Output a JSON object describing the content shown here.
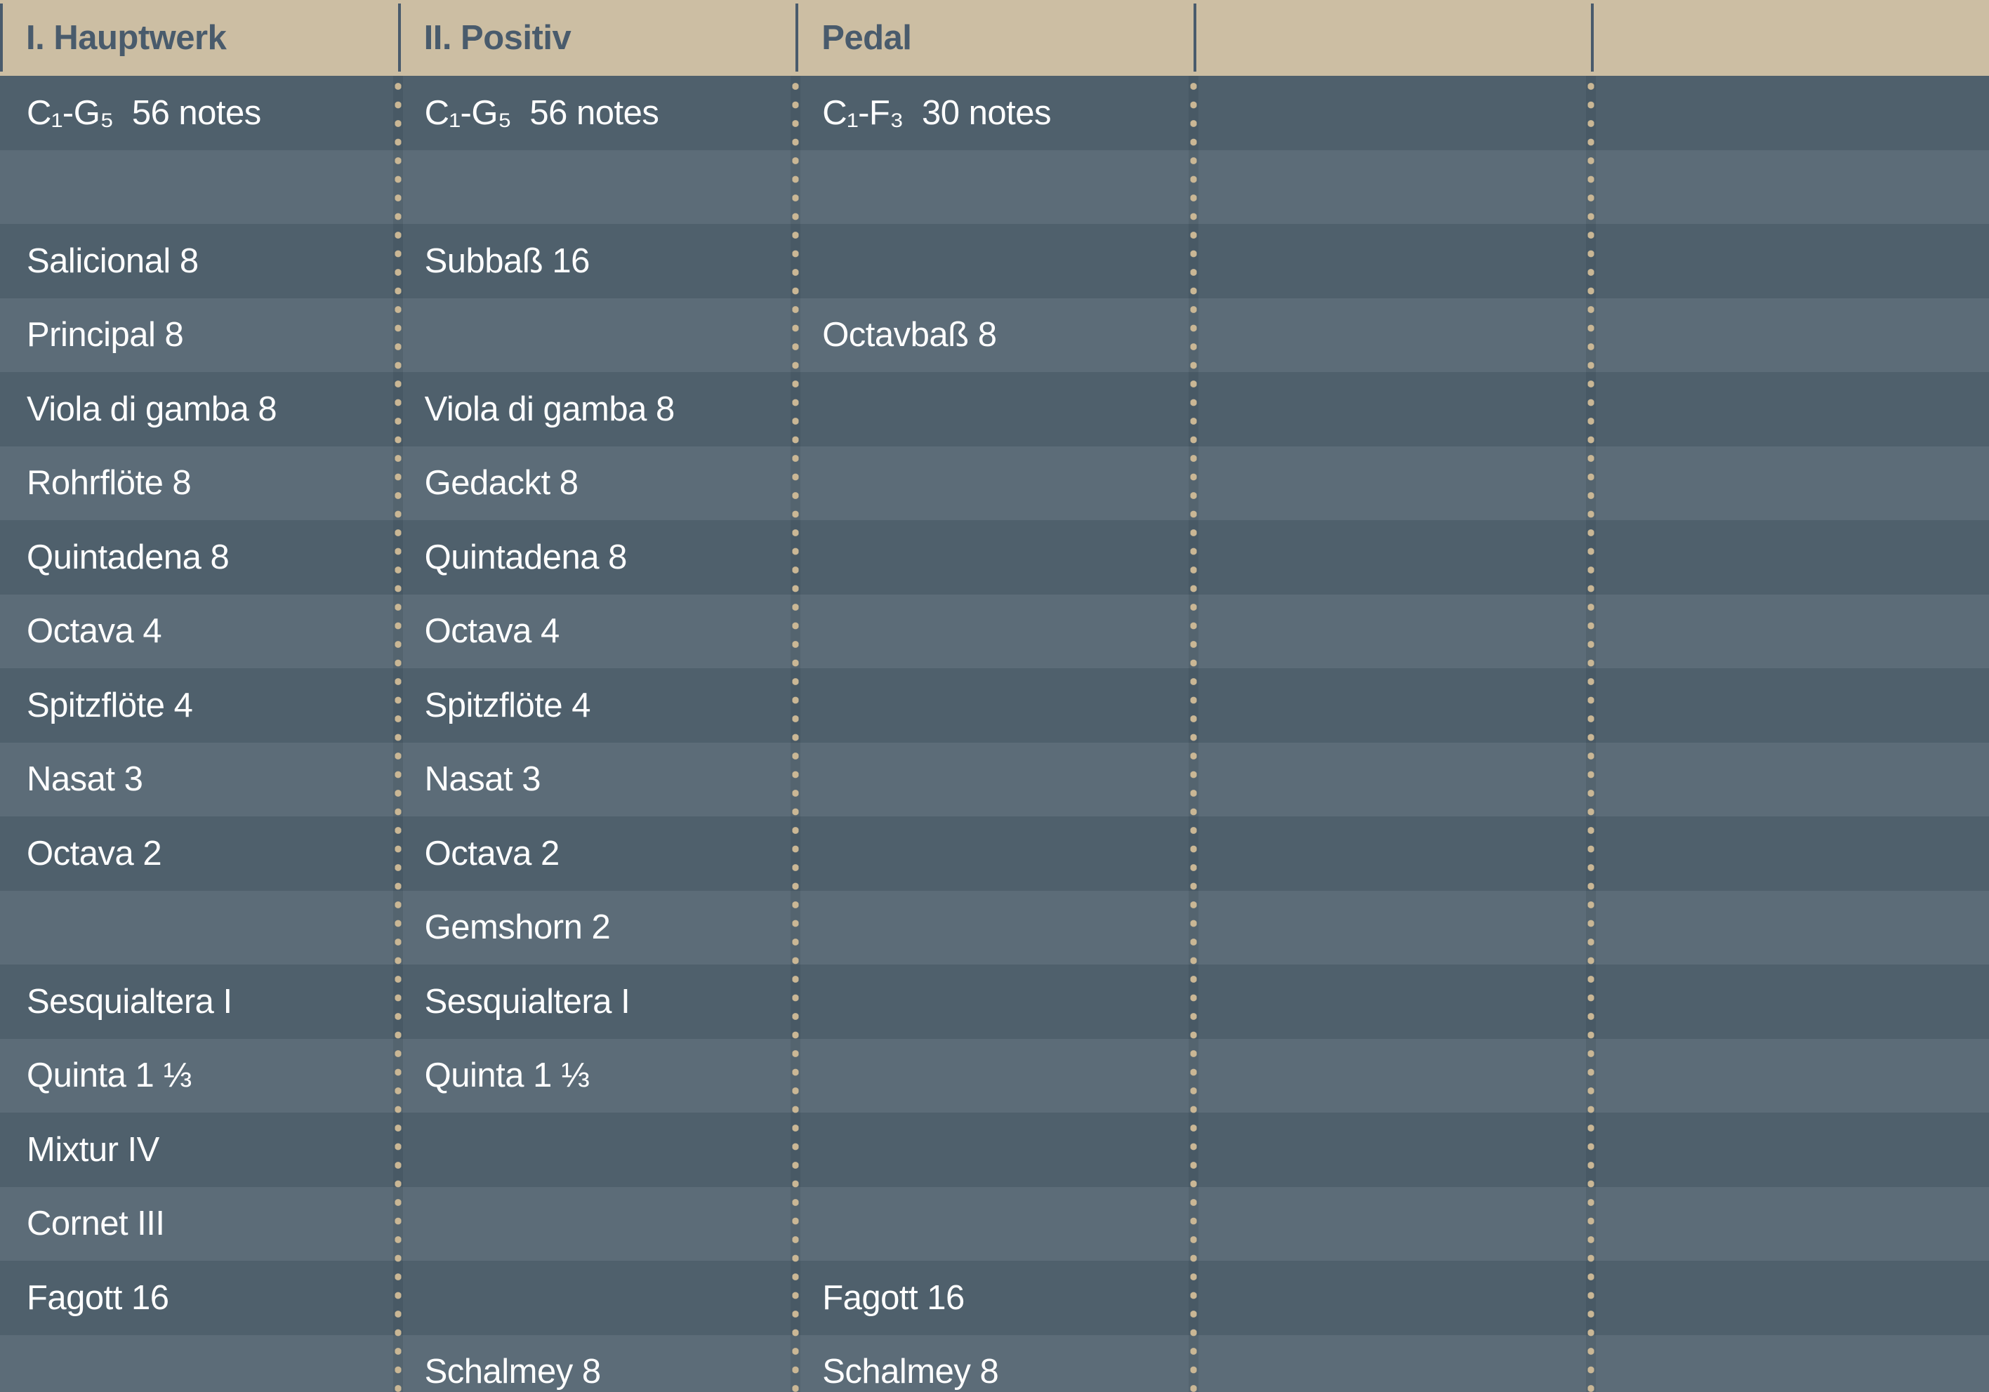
{
  "table": {
    "column_ids": [
      "hauptwerk",
      "positiv",
      "pedal",
      "empty-1",
      "empty-2"
    ],
    "headers": [
      "I. Hauptwerk",
      "II. Positiv",
      "Pedal",
      "",
      ""
    ],
    "rows": [
      [
        "C₁-G₅  56 notes",
        "C₁-G₅  56 notes",
        "C₁-F₃  30 notes",
        "",
        ""
      ],
      [
        "",
        "",
        "",
        "",
        ""
      ],
      [
        "Salicional 8",
        "Subbaß 16",
        "",
        "",
        ""
      ],
      [
        "Principal 8",
        "",
        "Octavbaß 8",
        "",
        ""
      ],
      [
        "Viola di gamba 8",
        "Viola di gamba 8",
        "",
        "",
        ""
      ],
      [
        "Rohrflöte 8",
        "Gedackt 8",
        "",
        "",
        ""
      ],
      [
        "Quintadena 8",
        "Quintadena 8",
        "",
        "",
        ""
      ],
      [
        "Octava 4",
        "Octava 4",
        "",
        "",
        ""
      ],
      [
        "Spitzflöte 4",
        "Spitzflöte 4",
        "",
        "",
        ""
      ],
      [
        "Nasat 3",
        "Nasat 3",
        "",
        "",
        ""
      ],
      [
        "Octava 2",
        "Octava 2",
        "",
        "",
        ""
      ],
      [
        "",
        "Gemshorn 2",
        "",
        "",
        ""
      ],
      [
        "Sesquialtera I",
        "Sesquialtera I",
        "",
        "",
        ""
      ],
      [
        "Quinta 1 ⅓",
        "Quinta 1 ⅓",
        "",
        "",
        ""
      ],
      [
        "Mixtur IV",
        "",
        "",
        "",
        ""
      ],
      [
        "Cornet III",
        "",
        "",
        "",
        ""
      ],
      [
        "Fagott 16",
        "",
        "Fagott 16",
        "",
        ""
      ],
      [
        "",
        "Schalmey 8",
        "Schalmey 8",
        "",
        ""
      ]
    ]
  },
  "colors": {
    "header_bg": "#ccbea3",
    "header_text": "#495b6c",
    "row_dark": "#4f606c",
    "row_light": "#5c6c78",
    "dot": "#cab795",
    "body_text": "#ffffff"
  }
}
